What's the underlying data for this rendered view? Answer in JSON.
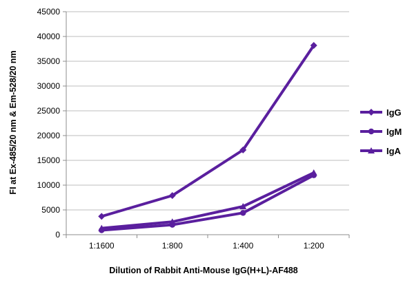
{
  "chart_data": {
    "type": "line",
    "title": "",
    "xlabel": "Dilution of Rabbit Anti-Mouse IgG(H+L)-AF488",
    "ylabel": "FI at Ex-485/20 nm & Em-528/20 nm",
    "categories": [
      "1:1600",
      "1:800",
      "1:400",
      "1:200"
    ],
    "ylim": [
      0,
      45000
    ],
    "yticks": [
      0,
      5000,
      10000,
      15000,
      20000,
      25000,
      30000,
      35000,
      40000,
      45000
    ],
    "grid": "horizontal",
    "legend": "right",
    "series": [
      {
        "name": "IgG",
        "marker": "diamond",
        "values": [
          3700,
          7900,
          17100,
          38200
        ]
      },
      {
        "name": "IgM",
        "marker": "circle",
        "values": [
          900,
          2000,
          4400,
          12000
        ]
      },
      {
        "name": "IgA",
        "marker": "triangle",
        "values": [
          1300,
          2600,
          5700,
          12500
        ]
      }
    ]
  },
  "colors": {
    "series": "#5a1f9e",
    "grid": "#bdbdbd",
    "axis": "#8c8c8c"
  }
}
